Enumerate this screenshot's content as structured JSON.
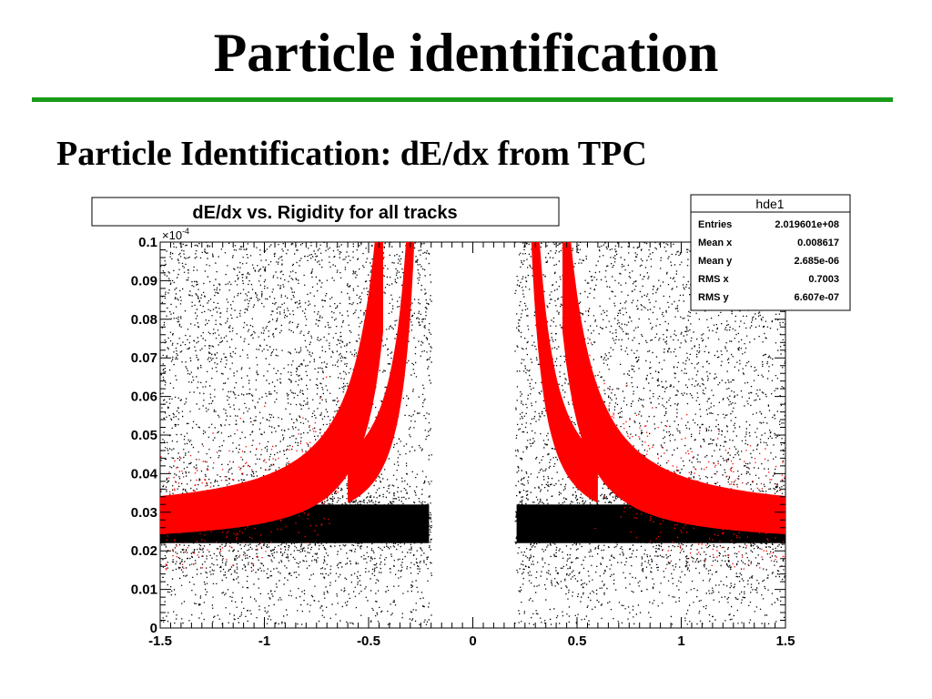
{
  "slide": {
    "title": "Particle identification",
    "subtitle": "Particle Identification: dE/dx from TPC",
    "rule_color": "#1a9a1a"
  },
  "chart_data": {
    "type": "scatter",
    "title": "dE/dx vs. Rigidity for all tracks",
    "xlabel": "",
    "ylabel": "",
    "xlim": [
      -1.5,
      1.5
    ],
    "ylim": [
      0,
      0.1
    ],
    "y_exponent_label": "×10",
    "y_exponent_power": "-4",
    "x_ticks": [
      {
        "value": -1.5,
        "label": "-1.5"
      },
      {
        "value": -1,
        "label": "-1"
      },
      {
        "value": -0.5,
        "label": "-0.5"
      },
      {
        "value": 0,
        "label": "0"
      },
      {
        "value": 0.5,
        "label": "0.5"
      },
      {
        "value": 1,
        "label": "1"
      },
      {
        "value": 1.5,
        "label": "1.5"
      }
    ],
    "y_ticks": [
      {
        "value": 0,
        "label": "0"
      },
      {
        "value": 0.01,
        "label": "0.01"
      },
      {
        "value": 0.02,
        "label": "0.02"
      },
      {
        "value": 0.03,
        "label": "0.03"
      },
      {
        "value": 0.04,
        "label": "0.04"
      },
      {
        "value": 0.05,
        "label": "0.05"
      },
      {
        "value": 0.06,
        "label": "0.06"
      },
      {
        "value": 0.07,
        "label": "0.07"
      },
      {
        "value": 0.08,
        "label": "0.08"
      },
      {
        "value": 0.09,
        "label": "0.09"
      },
      {
        "value": 0.1,
        "label": "0.1"
      }
    ],
    "grid": false,
    "series": [
      {
        "color": "#000000",
        "description_band": "all tracks (minimum-ionizing band near 0.025–0.03, |x| > 0.2)"
      },
      {
        "color": "#ff0000",
        "description_band": "identified bands curving up toward small |x|"
      }
    ],
    "stats_box": {
      "name": "hde1",
      "rows": [
        {
          "label": "Entries",
          "value": "2.019601e+08"
        },
        {
          "label": "Mean x",
          "value": "0.008617"
        },
        {
          "label": "Mean y",
          "value": "2.685e-06"
        },
        {
          "label": "RMS x",
          "value": "0.7003"
        },
        {
          "label": "RMS y",
          "value": "6.607e-07"
        }
      ]
    }
  }
}
